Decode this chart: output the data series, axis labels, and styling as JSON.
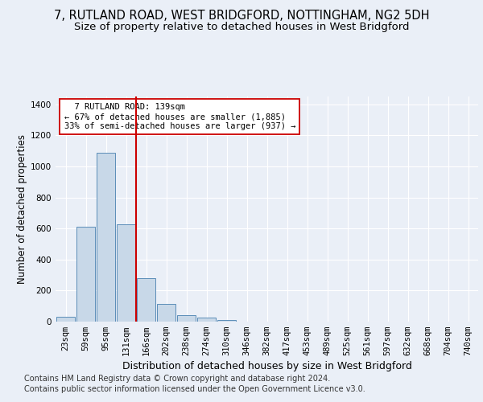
{
  "title1": "7, RUTLAND ROAD, WEST BRIDGFORD, NOTTINGHAM, NG2 5DH",
  "title2": "Size of property relative to detached houses in West Bridgford",
  "xlabel": "Distribution of detached houses by size in West Bridgford",
  "ylabel": "Number of detached properties",
  "footnote1": "Contains HM Land Registry data © Crown copyright and database right 2024.",
  "footnote2": "Contains public sector information licensed under the Open Government Licence v3.0.",
  "categories": [
    "23sqm",
    "59sqm",
    "95sqm",
    "131sqm",
    "166sqm",
    "202sqm",
    "238sqm",
    "274sqm",
    "310sqm",
    "346sqm",
    "382sqm",
    "417sqm",
    "453sqm",
    "489sqm",
    "525sqm",
    "561sqm",
    "597sqm",
    "632sqm",
    "668sqm",
    "704sqm",
    "740sqm"
  ],
  "values": [
    30,
    610,
    1085,
    625,
    280,
    115,
    40,
    25,
    10,
    0,
    0,
    0,
    0,
    0,
    0,
    0,
    0,
    0,
    0,
    0,
    0
  ],
  "bar_color": "#c8d8e8",
  "bar_edge_color": "#5b8db8",
  "vline_color": "#cc0000",
  "annotation_text": "  7 RUTLAND ROAD: 139sqm\n← 67% of detached houses are smaller (1,885)\n33% of semi-detached houses are larger (937) →",
  "annotation_box_color": "#ffffff",
  "annotation_box_edge": "#cc0000",
  "ylim": [
    0,
    1450
  ],
  "yticks": [
    0,
    200,
    400,
    600,
    800,
    1000,
    1200,
    1400
  ],
  "bg_color": "#eaeff7",
  "plot_bg_color": "#eaeff7",
  "grid_color": "#ffffff",
  "title1_fontsize": 10.5,
  "title2_fontsize": 9.5,
  "xlabel_fontsize": 9,
  "ylabel_fontsize": 8.5,
  "tick_fontsize": 7.5,
  "footnote_fontsize": 7
}
